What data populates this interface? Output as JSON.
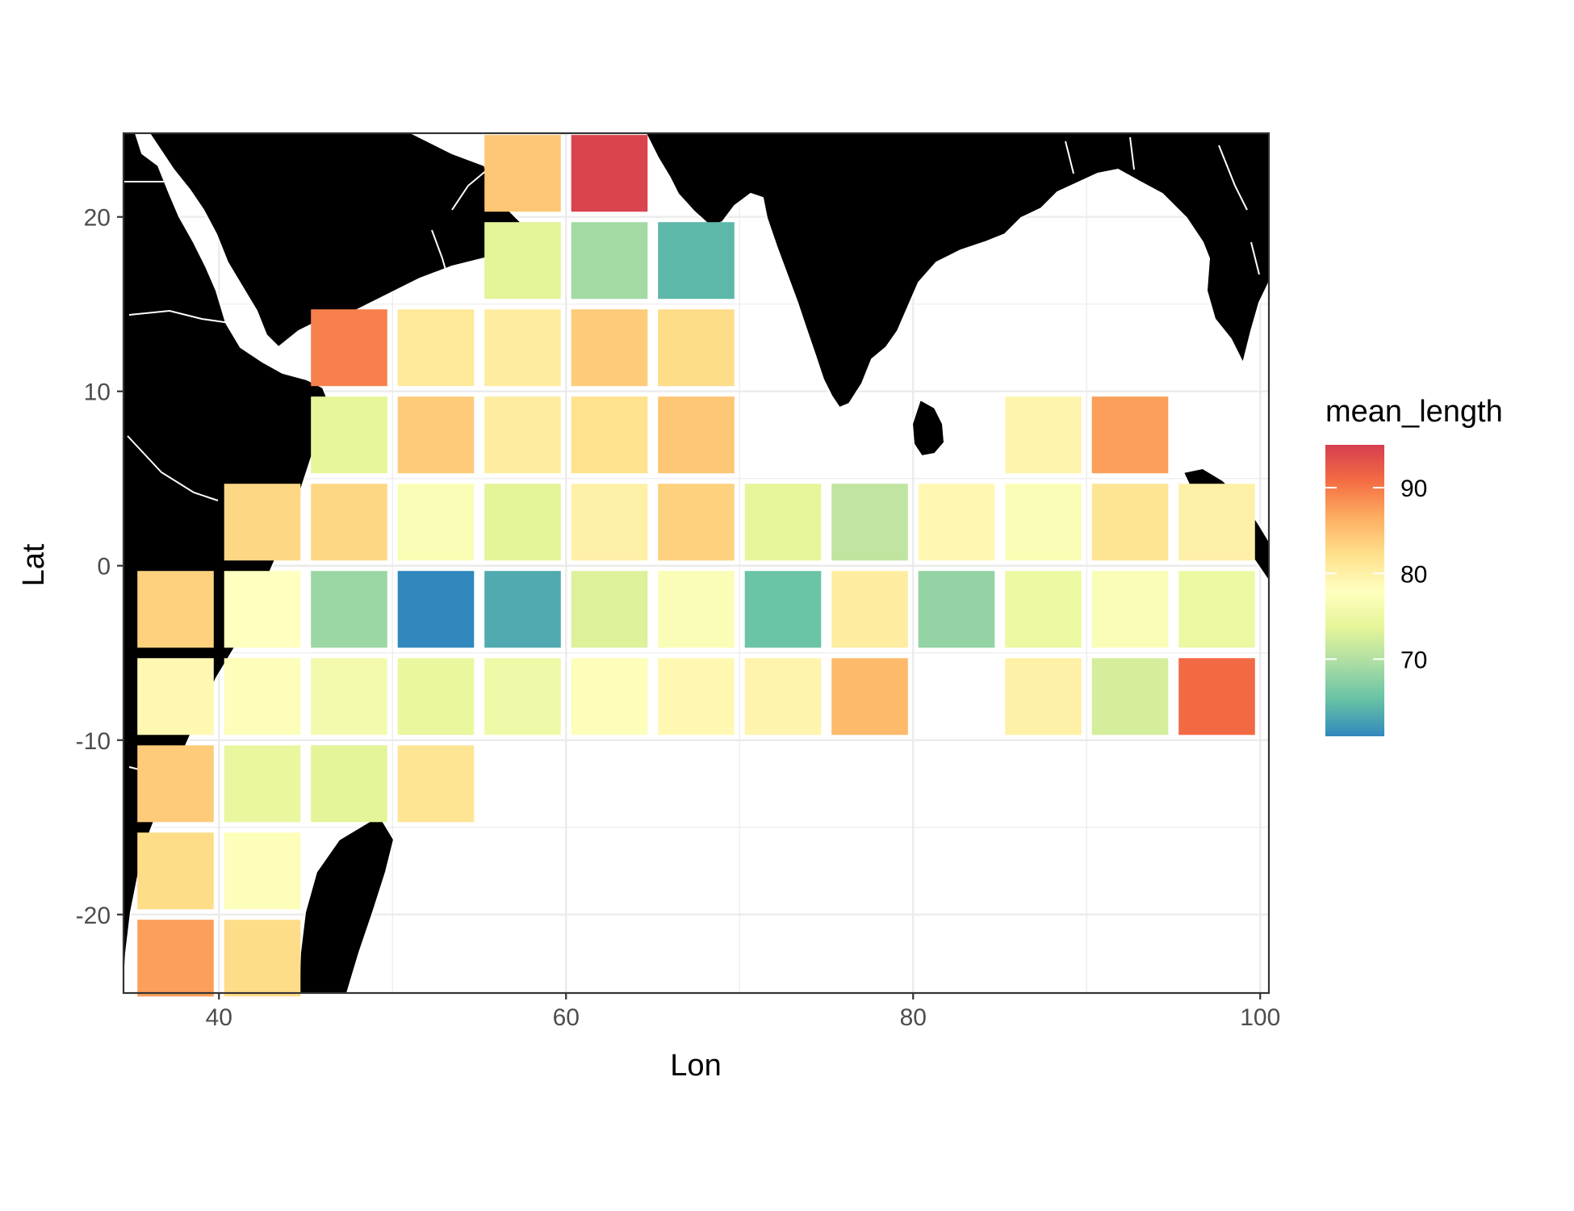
{
  "chart_data": {
    "type": "heatmap",
    "title": "",
    "xlabel": "Lon",
    "ylabel": "Lat",
    "xlim": [
      34.5,
      100.5
    ],
    "ylim": [
      -24.5,
      24.8
    ],
    "x_ticks": [
      40,
      60,
      80,
      100
    ],
    "y_ticks": [
      -20,
      -10,
      0,
      10,
      20
    ],
    "cell_size_deg": 5,
    "grid": true,
    "background_map": "land masses drawn in black with white country borders",
    "legend": {
      "title": "mean_length",
      "placement": "right",
      "ticks": [
        70,
        80,
        90
      ],
      "range": [
        61,
        95
      ],
      "palette": [
        "#3288bd",
        "#66c2a5",
        "#abdda4",
        "#e6f598",
        "#ffffbf",
        "#fee08b",
        "#fdae61",
        "#f46d43",
        "#d53e4f"
      ]
    },
    "cells": [
      {
        "lon": 57.5,
        "lat": 22.5,
        "value": 84.5
      },
      {
        "lon": 62.5,
        "lat": 22.5,
        "value": 94.5
      },
      {
        "lon": 57.5,
        "lat": 17.5,
        "value": 73.5
      },
      {
        "lon": 62.5,
        "lat": 17.5,
        "value": 69.0
      },
      {
        "lon": 67.5,
        "lat": 17.5,
        "value": 64.5
      },
      {
        "lon": 47.5,
        "lat": 12.5,
        "value": 89.5
      },
      {
        "lon": 52.5,
        "lat": 12.5,
        "value": 81.0
      },
      {
        "lon": 57.5,
        "lat": 12.5,
        "value": 80.5
      },
      {
        "lon": 62.5,
        "lat": 12.5,
        "value": 84.0
      },
      {
        "lon": 67.5,
        "lat": 12.5,
        "value": 82.5
      },
      {
        "lon": 47.5,
        "lat": 7.5,
        "value": 74.0
      },
      {
        "lon": 52.5,
        "lat": 7.5,
        "value": 84.0
      },
      {
        "lon": 57.5,
        "lat": 7.5,
        "value": 80.5
      },
      {
        "lon": 62.5,
        "lat": 7.5,
        "value": 82.0
      },
      {
        "lon": 67.5,
        "lat": 7.5,
        "value": 84.5
      },
      {
        "lon": 87.5,
        "lat": 7.5,
        "value": 79.5
      },
      {
        "lon": 92.5,
        "lat": 7.5,
        "value": 87.5
      },
      {
        "lon": 42.5,
        "lat": 2.5,
        "value": 83.0
      },
      {
        "lon": 47.5,
        "lat": 2.5,
        "value": 83.0
      },
      {
        "lon": 52.5,
        "lat": 2.5,
        "value": 77.0
      },
      {
        "lon": 57.5,
        "lat": 2.5,
        "value": 73.5
      },
      {
        "lon": 62.5,
        "lat": 2.5,
        "value": 80.0
      },
      {
        "lon": 67.5,
        "lat": 2.5,
        "value": 83.5
      },
      {
        "lon": 72.5,
        "lat": 2.5,
        "value": 74.0
      },
      {
        "lon": 77.5,
        "lat": 2.5,
        "value": 71.0
      },
      {
        "lon": 82.5,
        "lat": 2.5,
        "value": 79.0
      },
      {
        "lon": 87.5,
        "lat": 2.5,
        "value": 77.0
      },
      {
        "lon": 92.5,
        "lat": 2.5,
        "value": 81.5
      },
      {
        "lon": 97.5,
        "lat": 2.5,
        "value": 80.0
      },
      {
        "lon": 37.5,
        "lat": -2.5,
        "value": 83.5
      },
      {
        "lon": 42.5,
        "lat": -2.5,
        "value": 78.0
      },
      {
        "lon": 47.5,
        "lat": -2.5,
        "value": 68.5
      },
      {
        "lon": 52.5,
        "lat": -2.5,
        "value": 61.0
      },
      {
        "lon": 57.5,
        "lat": -2.5,
        "value": 63.5
      },
      {
        "lon": 62.5,
        "lat": -2.5,
        "value": 73.0
      },
      {
        "lon": 67.5,
        "lat": -2.5,
        "value": 77.0
      },
      {
        "lon": 72.5,
        "lat": -2.5,
        "value": 65.5
      },
      {
        "lon": 77.5,
        "lat": -2.5,
        "value": 80.5
      },
      {
        "lon": 82.5,
        "lat": -2.5,
        "value": 68.0
      },
      {
        "lon": 87.5,
        "lat": -2.5,
        "value": 75.0
      },
      {
        "lon": 92.5,
        "lat": -2.5,
        "value": 77.0
      },
      {
        "lon": 97.5,
        "lat": -2.5,
        "value": 75.0
      },
      {
        "lon": 37.5,
        "lat": -7.5,
        "value": 79.0
      },
      {
        "lon": 42.5,
        "lat": -7.5,
        "value": 77.5
      },
      {
        "lon": 47.5,
        "lat": -7.5,
        "value": 76.0
      },
      {
        "lon": 52.5,
        "lat": -7.5,
        "value": 74.5
      },
      {
        "lon": 57.5,
        "lat": -7.5,
        "value": 75.5
      },
      {
        "lon": 62.5,
        "lat": -7.5,
        "value": 77.5
      },
      {
        "lon": 67.5,
        "lat": -7.5,
        "value": 79.0
      },
      {
        "lon": 72.5,
        "lat": -7.5,
        "value": 79.5
      },
      {
        "lon": 77.5,
        "lat": -7.5,
        "value": 85.5
      },
      {
        "lon": 87.5,
        "lat": -7.5,
        "value": 80.0
      },
      {
        "lon": 92.5,
        "lat": -7.5,
        "value": 72.5
      },
      {
        "lon": 97.5,
        "lat": -7.5,
        "value": 91.0
      },
      {
        "lon": 37.5,
        "lat": -12.5,
        "value": 84.0
      },
      {
        "lon": 42.5,
        "lat": -12.5,
        "value": 74.5
      },
      {
        "lon": 47.5,
        "lat": -12.5,
        "value": 73.5
      },
      {
        "lon": 52.5,
        "lat": -12.5,
        "value": 81.5
      },
      {
        "lon": 37.5,
        "lat": -17.5,
        "value": 82.5
      },
      {
        "lon": 42.5,
        "lat": -17.5,
        "value": 77.5
      },
      {
        "lon": 37.5,
        "lat": -22.5,
        "value": 87.5
      },
      {
        "lon": 42.5,
        "lat": -22.5,
        "value": 82.5
      }
    ]
  }
}
